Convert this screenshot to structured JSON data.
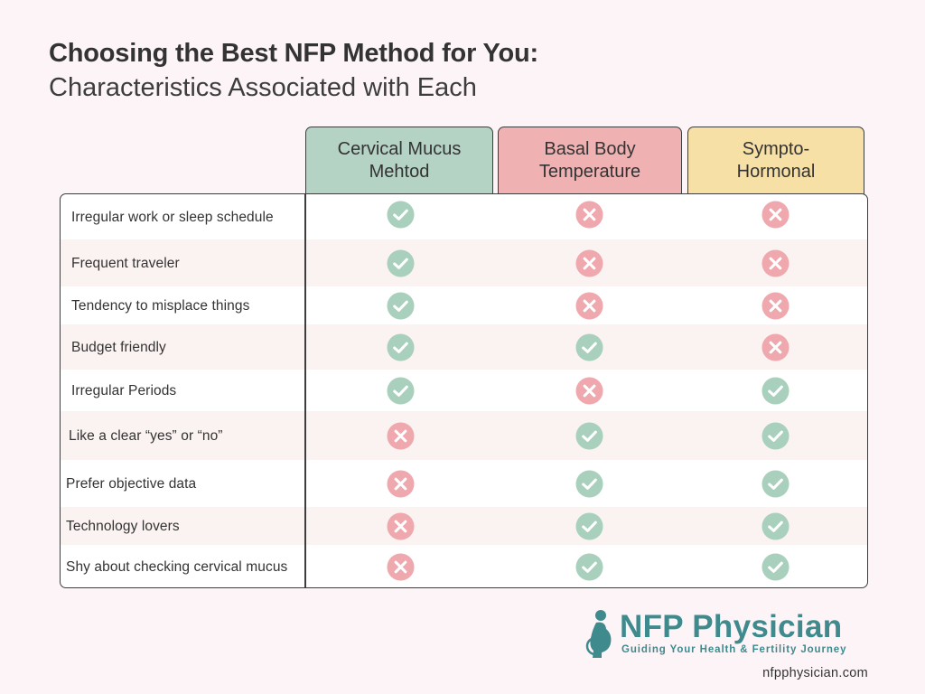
{
  "title": {
    "line1": "Choosing the Best NFP Method for You:",
    "line2": "Characteristics Associated with Each"
  },
  "columns": [
    {
      "label": "Cervical Mucus\nMehtod",
      "color": "#b4d3c4"
    },
    {
      "label": "Basal Body\nTemperature",
      "color": "#efb1b2"
    },
    {
      "label": "Sympto-\nHormonal",
      "color": "#f7e0a6"
    }
  ],
  "rows": [
    {
      "label": "Irregular work or sleep schedule",
      "values": [
        "yes",
        "no",
        "no"
      ]
    },
    {
      "label": "Frequent traveler",
      "values": [
        "yes",
        "no",
        "no"
      ]
    },
    {
      "label": "Tendency to misplace things",
      "values": [
        "yes",
        "no",
        "no"
      ]
    },
    {
      "label": "Budget friendly",
      "values": [
        "yes",
        "yes",
        "no"
      ]
    },
    {
      "label": "Irregular Periods",
      "values": [
        "yes",
        "no",
        "yes"
      ]
    },
    {
      "label": "Like a clear “yes” or “no”",
      "values": [
        "no",
        "yes",
        "yes"
      ]
    },
    {
      "label": "Prefer objective data",
      "values": [
        "no",
        "yes",
        "yes"
      ]
    },
    {
      "label": "Technology lovers",
      "values": [
        "no",
        "yes",
        "yes"
      ]
    },
    {
      "label": "Shy about checking cervical mucus",
      "values": [
        "no",
        "yes",
        "yes"
      ]
    }
  ],
  "icons": {
    "yes": "check-circle-icon",
    "no": "x-circle-icon"
  },
  "colors": {
    "check": "#a9cfbd",
    "cross": "#efa8ad",
    "brand": "#3f8a8c"
  },
  "brand": {
    "name": "NFP Physician",
    "tagline": "Guiding Your Health & Fertility Journey",
    "website": "nfpphysician.com"
  }
}
